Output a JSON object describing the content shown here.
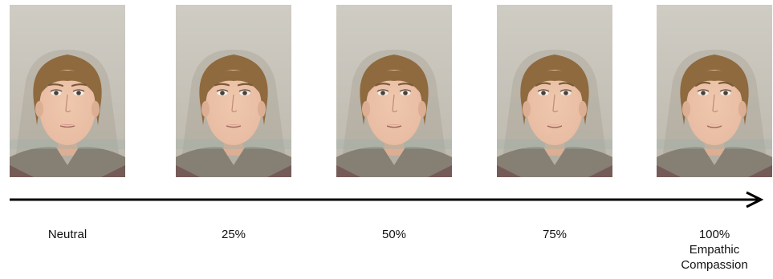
{
  "colors": {
    "background": "#c9c5bd",
    "skin": "#e7bba1",
    "hair": "#8f6a3e",
    "shirt": "#867f74",
    "arrow": "#000000"
  },
  "frames": [
    {
      "label": "Neutral",
      "level": 0
    },
    {
      "label": "25%",
      "level": 0.25
    },
    {
      "label": "50%",
      "level": 0.5
    },
    {
      "label": "75%",
      "level": 0.75
    },
    {
      "label": "100%\nEmpathic\nCompassion",
      "level": 1
    }
  ]
}
